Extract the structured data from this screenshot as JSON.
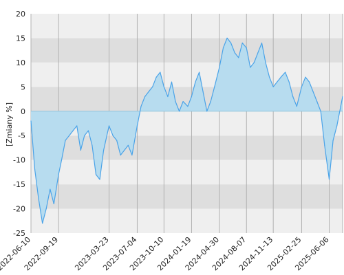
{
  "chart_data": {
    "type": "area",
    "title": "",
    "xlabel": "",
    "ylabel": "[Zmiany %]",
    "ylim": [
      -25,
      20
    ],
    "yticks": [
      -25,
      -20,
      -15,
      -10,
      -5,
      0,
      5,
      10,
      15,
      20
    ],
    "x_range": [
      "2022-06-10",
      "2025-07-25"
    ],
    "xticks": [
      "2022-06-10",
      "2022-09-19",
      "2023-03-23",
      "2023-07-04",
      "2023-10-10",
      "2024-01-19",
      "2024-04-30",
      "2024-08-07",
      "2024-11-13",
      "2025-02-25",
      "2025-06-06"
    ],
    "grid": true,
    "colors": {
      "line": "#4aa3e8",
      "fill": "#b7dcef",
      "band_light": "#efefef",
      "band_dark": "#dedede",
      "grid": "#b0b0b0",
      "zero_line": "#8fc3dd"
    },
    "series": [
      {
        "x": [
          "2022-06-10",
          "2022-06-24",
          "2022-07-08",
          "2022-07-22",
          "2022-08-05",
          "2022-08-19",
          "2022-09-02",
          "2022-09-19",
          "2022-09-30",
          "2022-10-14",
          "2022-10-28",
          "2022-11-11",
          "2022-11-25",
          "2022-12-09",
          "2022-12-23",
          "2023-01-06",
          "2023-01-20",
          "2023-02-03",
          "2023-02-17",
          "2023-03-03",
          "2023-03-23",
          "2023-04-06",
          "2023-04-20",
          "2023-05-04",
          "2023-05-18",
          "2023-06-01",
          "2023-06-15",
          "2023-07-04",
          "2023-07-18",
          "2023-08-01",
          "2023-08-15",
          "2023-08-29",
          "2023-09-12",
          "2023-09-26",
          "2023-10-10",
          "2023-10-24",
          "2023-11-07",
          "2023-11-21",
          "2023-12-05",
          "2023-12-19",
          "2024-01-05",
          "2024-01-19",
          "2024-02-02",
          "2024-02-16",
          "2024-03-01",
          "2024-03-15",
          "2024-03-29",
          "2024-04-12",
          "2024-04-30",
          "2024-05-14",
          "2024-05-28",
          "2024-06-11",
          "2024-06-25",
          "2024-07-09",
          "2024-07-23",
          "2024-08-07",
          "2024-08-21",
          "2024-09-04",
          "2024-09-18",
          "2024-10-02",
          "2024-10-16",
          "2024-10-30",
          "2024-11-13",
          "2024-11-27",
          "2024-12-11",
          "2024-12-27",
          "2025-01-10",
          "2025-01-24",
          "2025-02-07",
          "2025-02-25",
          "2025-03-11",
          "2025-03-25",
          "2025-04-08",
          "2025-04-22",
          "2025-05-06",
          "2025-05-20",
          "2025-06-06",
          "2025-06-20",
          "2025-07-04",
          "2025-07-18",
          "2025-07-25"
        ],
        "values": [
          -2,
          -12,
          -18,
          -23,
          -20,
          -16,
          -19,
          -13,
          -10,
          -6,
          -5,
          -4,
          -3,
          -8,
          -5,
          -4,
          -7,
          -13,
          -14,
          -8,
          -3,
          -5,
          -6,
          -9,
          -8,
          -7,
          -9,
          -3,
          1,
          3,
          4,
          5,
          7,
          8,
          5,
          3,
          6,
          2,
          0,
          2,
          1,
          3,
          6,
          8,
          4,
          0,
          2,
          5,
          9,
          13,
          15,
          14,
          12,
          11,
          14,
          13,
          9,
          10,
          12,
          14,
          10,
          7,
          5,
          6,
          7,
          8,
          6,
          3,
          1,
          5,
          7,
          6,
          4,
          2,
          0,
          -7,
          -14,
          -6,
          -3,
          1,
          3
        ]
      }
    ]
  }
}
